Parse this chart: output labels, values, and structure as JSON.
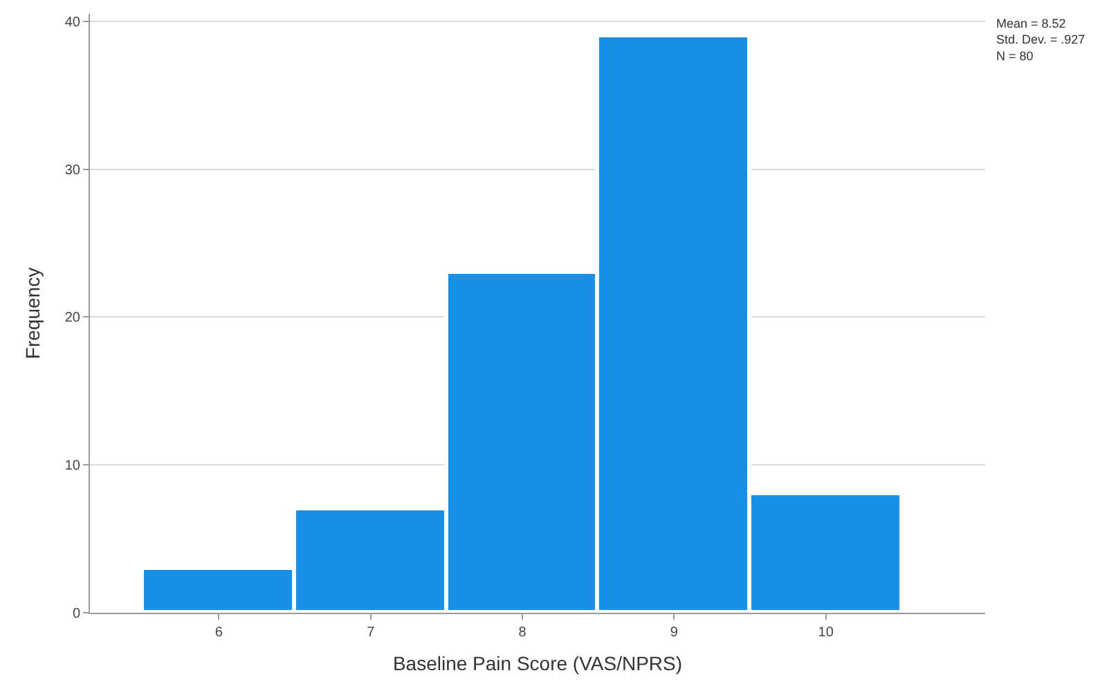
{
  "chart_data": {
    "type": "histogram",
    "xlabel": "Baseline Pain Score (VAS/NPRS)",
    "ylabel": "Frequency",
    "bins": [
      5.5,
      6.5,
      7.5,
      8.5,
      9.5,
      10.5
    ],
    "values": [
      3,
      7,
      23,
      39,
      8
    ],
    "color": "#1790e6",
    "xlim": [
      5.15,
      11.05
    ],
    "xticks": [
      6,
      7,
      8,
      9,
      10
    ],
    "ylim": [
      0,
      40.5
    ],
    "yticks": [
      0,
      10,
      20,
      30,
      40
    ],
    "grid": "y",
    "annotations": [
      "Mean = 8.52\nStd. Dev. = .927\nN = 80"
    ]
  }
}
